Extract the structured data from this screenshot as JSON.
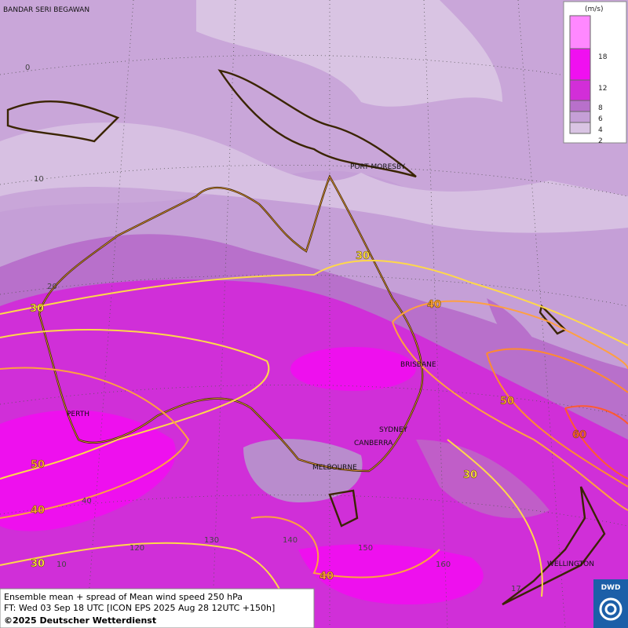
{
  "map": {
    "title": "Ensemble mean + spread of Mean wind speed 250 hPa",
    "forecast": "FT: Wed 03 Sep 18 UTC [ICON EPS 2025 Aug 28 12UTC +150h]",
    "copyright": "©2025 Deutscher Wetterdienst",
    "logo": "DWD"
  },
  "legend": {
    "unit": "(m/s)",
    "levels": [
      "2",
      "4",
      "6",
      "8",
      "12",
      "18"
    ]
  },
  "cities": [
    "BANDAR SERI BEGAWAN",
    "PORT MORESBY",
    "BRISBANE",
    "PERTH",
    "SYDNEY",
    "CANBERRA",
    "MELBOURNE",
    "WELLINGTON"
  ],
  "grid_labels": [
    "0",
    "10",
    "20",
    "40",
    "120",
    "130",
    "140",
    "150",
    "160",
    "10",
    "17"
  ],
  "contour_labels": [
    "30",
    "30",
    "40",
    "50",
    "60",
    "50",
    "40",
    "30",
    "40",
    "30"
  ]
}
